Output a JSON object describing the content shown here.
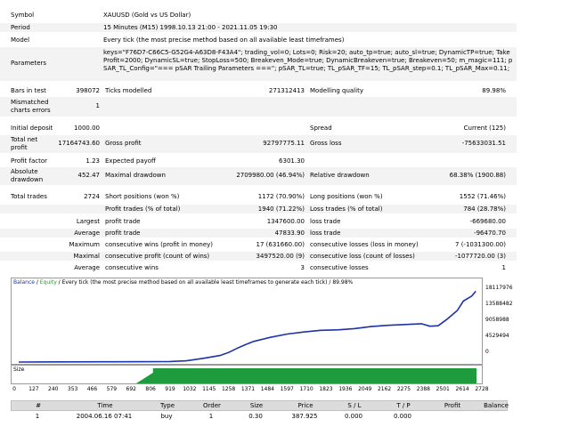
{
  "report": {
    "symbol_label": "Symbol",
    "symbol_value": "XAUUSD (Gold vs US Dollar)",
    "period_label": "Period",
    "period_value": "15 Minutes (M15) 1998.10.13 21:00 - 2021.11.05 19:30",
    "model_label": "Model",
    "model_value": "Every tick (the most precise method based on all available least timeframes)",
    "parameters_label": "Parameters",
    "parameters_value": "keys=\"F76D7-C66C5-G52G4-A63D8-F43A4\"; trading_vol=0; Lots=0; Risk=20; auto_tp=true; auto_sl=true; DynamicTP=true; TakeProfit=2000; DynamicSL=true; StopLoss=500; Breakeven_Mode=true; DynamicBreakeven=true; Breakeven=50; m_magic=111; pSAR_TL_Config=\"=== pSAR Trailing Parameters ===\"; pSAR_TL=true; TL_pSAR_TF=15; TL_pSAR_step=0.1; TL_pSAR_Max=0.11;",
    "bars_label": "Bars in test",
    "bars_value": "398072",
    "ticks_label": "Ticks modelled",
    "ticks_value": "271312413",
    "quality_label": "Modelling quality",
    "quality_value": "89.98%",
    "mismatch_label_1": "Mismatched",
    "mismatch_label_2": "charts errors",
    "mismatch_value": "1",
    "deposit_label": "Initial deposit",
    "deposit_value": "1000.00",
    "spread_label": "Spread",
    "spread_value": "Current (125)",
    "netprofit_label_1": "Total net",
    "netprofit_label_2": "profit",
    "netprofit_value": "17164743.60",
    "grossprofit_label": "Gross profit",
    "grossprofit_value": "92797775.11",
    "grossloss_label": "Gross loss",
    "grossloss_value": "-75633031.51",
    "pf_label": "Profit factor",
    "pf_value": "1.23",
    "payoff_label": "Expected payoff",
    "payoff_value": "6301.30",
    "absdd_label_1": "Absolute",
    "absdd_label_2": "drawdown",
    "absdd_value": "452.47",
    "maxdd_label": "Maximal drawdown",
    "maxdd_value": "2709980.00 (46.94%)",
    "reldd_label": "Relative drawdown",
    "reldd_value": "68.38% (1900.88)",
    "totaltrades_label": "Total trades",
    "totaltrades_value": "2724",
    "short_label": "Short positions (won %)",
    "short_value": "1172 (70.90%)",
    "long_label": "Long positions (won %)",
    "long_value": "1552 (71.46%)",
    "profittrades_label": "Profit trades (% of total)",
    "profittrades_value": "1940 (71.22%)",
    "losstrades_label": "Loss trades (% of total)",
    "losstrades_value": "784 (28.78%)",
    "largest_label": "Largest",
    "largest_profit_label": "profit trade",
    "largest_profit_value": "1347600.00",
    "largest_loss_label": "loss trade",
    "largest_loss_value": "-669680.00",
    "average_label": "Average",
    "average_profit_label": "profit trade",
    "average_profit_value": "47833.90",
    "average_loss_label": "loss trade",
    "average_loss_value": "-96470.70",
    "maximum_label": "Maximum",
    "max_wins_label": "consecutive wins (profit in money)",
    "max_wins_value": "17 (631660.00)",
    "max_losses_label": "consecutive losses (loss in money)",
    "max_losses_value": "7 (-1031300.00)",
    "maximal_label": "Maximal",
    "maximal_profit_label": "consecutive profit (count of wins)",
    "maximal_profit_value": "3497520.00 (9)",
    "maximal_loss_label": "consecutive loss (count of losses)",
    "maximal_loss_value": "-1077720.00 (3)",
    "avg_label": "Average",
    "avg_wins_label": "consecutive wins",
    "avg_wins_value": "3",
    "avg_losses_label": "consecutive losses",
    "avg_losses_value": "1"
  },
  "chart": {
    "legend_balance": "Balance",
    "legend_sep": " / ",
    "legend_equity": "Equity",
    "legend_rest": " / Every tick (the most precise method based on all available least timeframes to generate each tick) / 89.98%",
    "size_label": "Size",
    "balance_color": "#1d33a8",
    "equity_color": "#26a026",
    "volume_color": "#1e9b3c"
  },
  "chart_data": {
    "type": "line",
    "series": [
      {
        "name": "Balance",
        "x": [
          0,
          250,
          500,
          750,
          900,
          1000,
          1100,
          1200,
          1250,
          1300,
          1350,
          1400,
          1500,
          1600,
          1700,
          1800,
          1900,
          2000,
          2100,
          2200,
          2300,
          2400,
          2450,
          2500,
          2550,
          2614,
          2650,
          2700,
          2724
        ],
        "values": [
          1000,
          40000,
          60000,
          90000,
          120000,
          300000,
          900000,
          1600000,
          2300000,
          3300000,
          4200000,
          5000000,
          6000000,
          6800000,
          7300000,
          7700000,
          7800000,
          8100000,
          8600000,
          8900000,
          9100000,
          9300000,
          8700000,
          8800000,
          10300000,
          12500000,
          14800000,
          16000000,
          17164743.6
        ]
      }
    ],
    "y_ticks": [
      "18117976",
      "13588482",
      "9058988",
      "4529494",
      "0"
    ],
    "x_ticks": [
      "0",
      "127",
      "240",
      "353",
      "466",
      "579",
      "692",
      "806",
      "919",
      "1032",
      "1145",
      "1258",
      "1371",
      "1484",
      "1597",
      "1710",
      "1823",
      "1936",
      "2049",
      "2162",
      "2275",
      "2388",
      "2501",
      "2614",
      "2728"
    ],
    "ylim": [
      0,
      18117976
    ],
    "xlim": [
      0,
      2728
    ],
    "grid": false
  },
  "trades": {
    "headers": [
      "#",
      "Time",
      "Type",
      "Order",
      "Size",
      "Price",
      "S / L",
      "T / P",
      "Profit",
      "Balance"
    ],
    "rows": [
      [
        "1",
        "2004.06.16 07:41",
        "buy",
        "1",
        "0.30",
        "387.925",
        "0.000",
        "0.000",
        "",
        ""
      ]
    ]
  }
}
